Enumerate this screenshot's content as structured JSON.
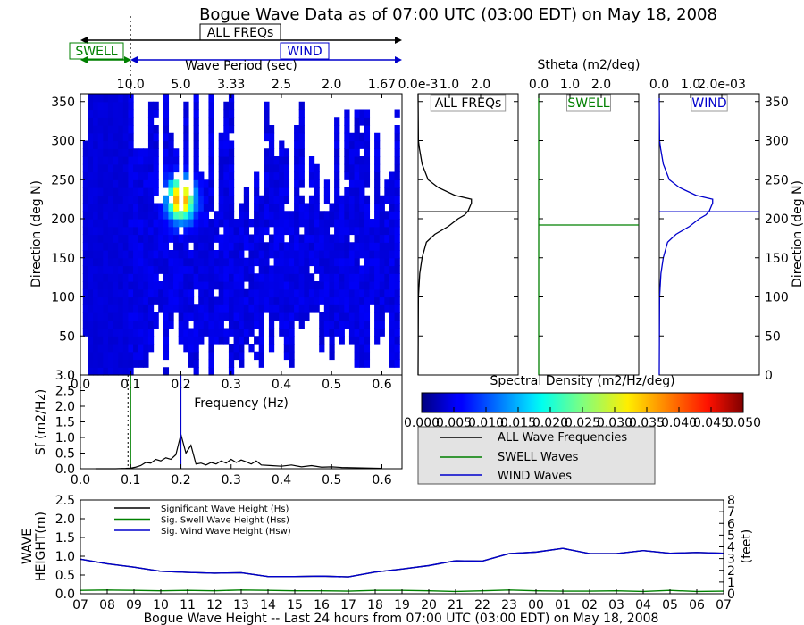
{
  "chart_data": [
    {
      "type": "heatmap",
      "title": "Bogue Wave Data as of 07:00 UTC (03:00 EDT) on May 18, 2008",
      "xlabel": "Frequency (Hz)",
      "ylabel": "Direction (deg N)",
      "top_axis_label": "Wave Period (sec)",
      "xlim": [
        0.0,
        0.64
      ],
      "ylim": [
        0,
        360
      ],
      "x_ticks": [
        "0.0",
        "0.1",
        "0.2",
        "0.3",
        "0.4",
        "0.5",
        "0.6"
      ],
      "y_ticks": [
        "0",
        "50",
        "100",
        "150",
        "200",
        "250",
        "300",
        "350"
      ],
      "top_ticks": [
        {
          "label": "10.0",
          "freq": 0.1
        },
        {
          "label": "5.0",
          "freq": 0.2
        },
        {
          "label": "3.33",
          "freq": 0.3
        },
        {
          "label": "2.5",
          "freq": 0.4
        },
        {
          "label": "2.0",
          "freq": 0.5
        },
        {
          "label": "1.67",
          "freq": 0.6
        }
      ],
      "bands": {
        "all_label": "ALL FREQs",
        "swell_label": "SWELL",
        "wind_label": "WIND",
        "separation_freq": 0.1
      },
      "colorbar": {
        "title": "Spectral Density (m2/Hz/deg)",
        "range": [
          0.0,
          0.05
        ],
        "ticks": [
          "0.000",
          "0.005",
          "0.010",
          "0.015",
          "0.020",
          "0.025",
          "0.030",
          "0.035",
          "0.040",
          "0.045",
          "0.050"
        ]
      },
      "peak": {
        "freq": 0.2,
        "dir": 220
      }
    },
    {
      "type": "line",
      "panel": "Stheta",
      "title": "Stheta (m2/deg)",
      "subplots": [
        {
          "label": "ALL FREQs",
          "color": "#000000",
          "ticks": [
            "0.0e-3",
            "1.0",
            "2.0"
          ],
          "mean_dir": 209,
          "profile": [
            [
              0,
              0.0
            ],
            [
              100,
              0.01
            ],
            [
              130,
              0.05
            ],
            [
              150,
              0.12
            ],
            [
              170,
              0.25
            ],
            [
              180,
              0.5
            ],
            [
              190,
              0.9
            ],
            [
              200,
              1.2
            ],
            [
              205,
              1.4
            ],
            [
              210,
              1.5
            ],
            [
              215,
              1.55
            ],
            [
              220,
              1.6
            ],
            [
              225,
              1.6
            ],
            [
              230,
              1.1
            ],
            [
              240,
              0.6
            ],
            [
              250,
              0.3
            ],
            [
              270,
              0.12
            ],
            [
              290,
              0.04
            ],
            [
              300,
              0.01
            ],
            [
              360,
              0.0
            ]
          ],
          "xlim": [
            0,
            3.0
          ]
        },
        {
          "label": "SWELL",
          "color": "#008000",
          "ticks": [
            "0.0",
            "1.0",
            "2.0"
          ],
          "mean_dir": 192,
          "profile": [
            [
              0,
              0.0
            ],
            [
              360,
              0.0
            ]
          ],
          "xlim": [
            0,
            3.0
          ]
        },
        {
          "label": "WIND",
          "color": "#0000cc",
          "ticks": [
            "0.0",
            "1.0",
            "2.0e-03"
          ],
          "mean_dir": 209,
          "profile": [
            [
              0,
              0.0
            ],
            [
              100,
              0.01
            ],
            [
              130,
              0.05
            ],
            [
              150,
              0.12
            ],
            [
              170,
              0.25
            ],
            [
              180,
              0.5
            ],
            [
              190,
              0.9
            ],
            [
              200,
              1.2
            ],
            [
              205,
              1.4
            ],
            [
              210,
              1.5
            ],
            [
              215,
              1.55
            ],
            [
              220,
              1.6
            ],
            [
              225,
              1.6
            ],
            [
              230,
              1.1
            ],
            [
              240,
              0.6
            ],
            [
              250,
              0.3
            ],
            [
              270,
              0.12
            ],
            [
              290,
              0.04
            ],
            [
              300,
              0.01
            ],
            [
              360,
              0.0
            ]
          ],
          "xlim": [
            0,
            3.0
          ]
        }
      ],
      "y_ticks": [
        "0",
        "50",
        "100",
        "150",
        "200",
        "250",
        "300",
        "350"
      ],
      "ylabel": "Direction (deg N)"
    },
    {
      "type": "line",
      "panel": "Sf",
      "xlabel": "Frequency (Hz)",
      "ylabel": "Sf (m2/Hz)",
      "xlim": [
        0.0,
        0.64
      ],
      "ylim": [
        0.0,
        3.0
      ],
      "x_ticks": [
        "0.0",
        "0.1",
        "0.2",
        "0.3",
        "0.4",
        "0.5",
        "0.6"
      ],
      "y_ticks": [
        "0.0",
        "0.5",
        "1.0",
        "1.5",
        "2.0",
        "2.5",
        "3.0"
      ],
      "swell_peak_freq": 0.1,
      "wind_peak_freq": 0.2,
      "x": [
        0.03,
        0.05,
        0.07,
        0.09,
        0.1,
        0.11,
        0.12,
        0.13,
        0.14,
        0.15,
        0.16,
        0.17,
        0.18,
        0.19,
        0.2,
        0.21,
        0.22,
        0.23,
        0.24,
        0.25,
        0.26,
        0.27,
        0.28,
        0.29,
        0.3,
        0.31,
        0.32,
        0.33,
        0.34,
        0.35,
        0.36,
        0.38,
        0.4,
        0.42,
        0.44,
        0.46,
        0.48,
        0.5,
        0.52,
        0.55,
        0.58,
        0.6
      ],
      "y": [
        0.0,
        0.0,
        0.0,
        0.01,
        0.02,
        0.05,
        0.1,
        0.2,
        0.18,
        0.3,
        0.25,
        0.35,
        0.3,
        0.45,
        1.1,
        0.5,
        0.75,
        0.15,
        0.18,
        0.12,
        0.2,
        0.15,
        0.25,
        0.18,
        0.3,
        0.2,
        0.28,
        0.22,
        0.15,
        0.25,
        0.12,
        0.1,
        0.08,
        0.12,
        0.06,
        0.1,
        0.05,
        0.06,
        0.04,
        0.03,
        0.02,
        0.01
      ]
    },
    {
      "type": "line",
      "panel": "Wave Height",
      "xlabel": "Bogue Wave Height -- Last 24 hours from 07:00 UTC (03:00 EDT) on May 18, 2008",
      "ylabel": "WAVE HEIGHT(m)",
      "ylabel2": "(feet)",
      "categories": [
        "07",
        "08",
        "09",
        "10",
        "11",
        "12",
        "13",
        "14",
        "15",
        "16",
        "17",
        "18",
        "19",
        "20",
        "21",
        "22",
        "23",
        "00",
        "01",
        "02",
        "03",
        "04",
        "05",
        "06",
        "07"
      ],
      "ylim": [
        0.0,
        2.5
      ],
      "y_ticks": [
        "0.0",
        "0.5",
        "1.0",
        "1.5",
        "2.0",
        "2.5"
      ],
      "y2_ticks": [
        "0",
        "1",
        "2",
        "3",
        "4",
        "5",
        "6",
        "7",
        "8"
      ],
      "legend_placement": "upper-left",
      "series": [
        {
          "name": "Significant Wave Height (Hs)",
          "color": "#000000",
          "values": [
            0.92,
            0.8,
            0.71,
            0.6,
            0.57,
            0.55,
            0.56,
            0.46,
            0.46,
            0.47,
            0.45,
            0.58,
            0.66,
            0.75,
            0.88,
            0.87,
            1.07,
            1.11,
            1.21,
            1.07,
            1.07,
            1.15,
            1.08,
            1.1,
            1.08
          ]
        },
        {
          "name": "Sig. Swell Wave Height (Hss)",
          "color": "#008000",
          "values": [
            0.09,
            0.1,
            0.09,
            0.08,
            0.09,
            0.08,
            0.1,
            0.09,
            0.08,
            0.08,
            0.07,
            0.09,
            0.09,
            0.08,
            0.06,
            0.08,
            0.1,
            0.08,
            0.07,
            0.07,
            0.08,
            0.06,
            0.09,
            0.06,
            0.07
          ]
        },
        {
          "name": "Sig. Wind Wave Height (Hsw)",
          "color": "#0000cc",
          "values": [
            0.92,
            0.8,
            0.71,
            0.6,
            0.57,
            0.55,
            0.56,
            0.46,
            0.46,
            0.47,
            0.45,
            0.58,
            0.66,
            0.75,
            0.88,
            0.87,
            1.07,
            1.11,
            1.21,
            1.07,
            1.07,
            1.15,
            1.08,
            1.1,
            1.08
          ]
        }
      ]
    }
  ],
  "legend": {
    "all": "ALL Wave Frequencies",
    "swell": "SWELL Waves",
    "wind": "WIND Waves"
  }
}
